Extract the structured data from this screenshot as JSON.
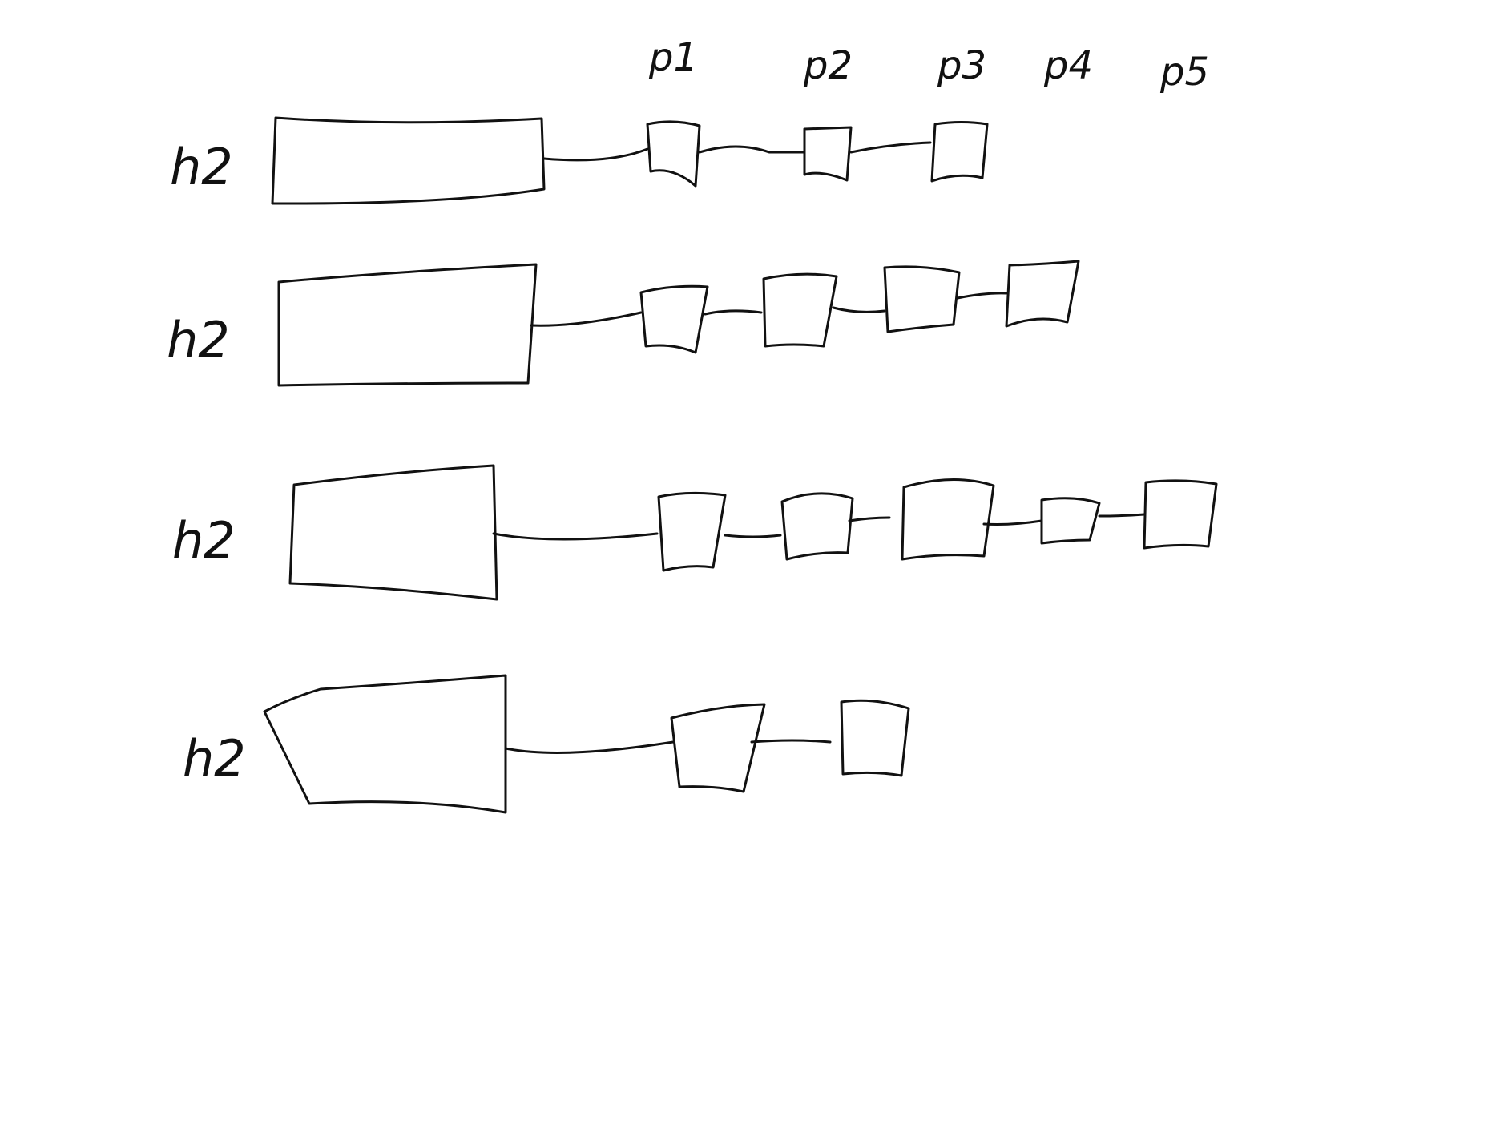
{
  "diagram": {
    "ink_color": "#111111",
    "background": "#ffffff",
    "columns": [
      "p1",
      "p2",
      "p3",
      "p4",
      "p5"
    ],
    "rows": [
      {
        "label": "h2",
        "node_count": 3
      },
      {
        "label": "h2",
        "node_count": 4
      },
      {
        "label": "h2",
        "node_count": 5
      },
      {
        "label": "h2",
        "node_count": 2
      }
    ]
  }
}
